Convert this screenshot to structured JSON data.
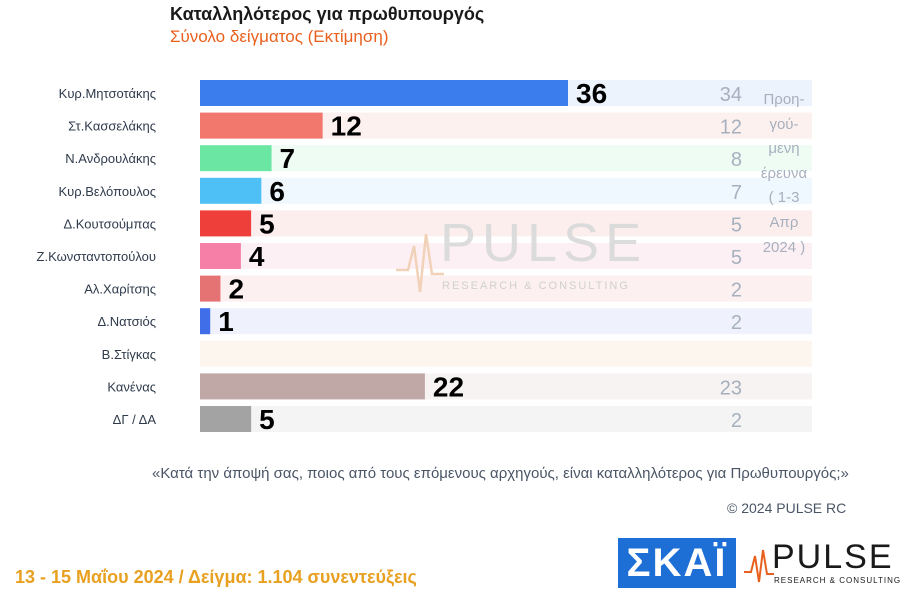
{
  "header": {
    "title": "Καταλληλότερος για πρωθυπουργός",
    "subtitle": "Σύνολο δείγματος   (Εκτίμηση)"
  },
  "chart_data": {
    "type": "bar",
    "orientation": "horizontal",
    "title": "Καταλληλότερος για πρωθυπουργός",
    "subtitle": "Σύνολο δείγματος   (Εκτίμηση)",
    "categories": [
      "Κυρ.Μητσοτάκης",
      "Στ.Κασσελάκης",
      "Ν.Ανδρουλάκης",
      "Κυρ.Βελόπουλος",
      "Δ.Κουτσούμπας",
      "Ζ.Κωνσταντοπούλου",
      "Αλ.Χαρίτσης",
      "Δ.Νατσιός",
      "Β.Στίγκας",
      "Κανένας",
      "ΔΓ / ΔΑ"
    ],
    "series": [
      {
        "values": [
          36,
          12,
          7,
          6,
          5,
          4,
          2,
          1,
          null,
          22,
          5
        ]
      },
      {
        "name": "Προηγούμενη έρευνα ( 1-3 Απρ 2024 )",
        "values": [
          34,
          12,
          8,
          7,
          5,
          5,
          2,
          2,
          null,
          23,
          2
        ]
      }
    ],
    "value_labels": [
      "36",
      "12",
      "7",
      "6",
      "5",
      "4",
      "2",
      "1",
      "",
      "22",
      "5"
    ],
    "previous_labels": [
      "34",
      "12",
      "8",
      "7",
      "5",
      "5",
      "2",
      "2",
      "",
      "23",
      "2"
    ],
    "bar_colors": [
      "#3b7ded",
      "#f2786e",
      "#6be6a3",
      "#4fc0f6",
      "#ef3f3a",
      "#f57fa6",
      "#e57373",
      "#3f6ee8",
      "#cccccc",
      "#bfa8a6",
      "#a3a3a3"
    ],
    "row_colors": [
      "#edf3fd",
      "#fdf1f0",
      "#effcf4",
      "#eef8fe",
      "#fdeeee",
      "#fdf0f4",
      "#fcf0f0",
      "#eff2fd",
      "#fdf6ee",
      "#f6f3f2",
      "#f4f4f4"
    ],
    "xlim": [
      0,
      60
    ]
  },
  "watermark": {
    "word": "PULSE",
    "sub": "RESEARCH & CONSULTING"
  },
  "previous_note": [
    "Προη-",
    "γού-",
    "μενη",
    "έρευνα",
    "( 1-3",
    "Απρ",
    "2024 )"
  ],
  "question": "«Κατά την άποψή σας, ποιος από τους επόμενους αρχηγούς, είναι καταλληλότερος για Πρωθυπουργός;»",
  "copyright": "© 2024 PULSE RC",
  "footer": "13 - 15  Μαΐου 2024  /  Δείγμα:  1.104 συνεντεύξεις",
  "logos": {
    "skai": "ΣΚΑΪ",
    "pulse_word": "PULSE",
    "pulse_sub": "RESEARCH & CONSULTING"
  },
  "colors": {
    "title": "#1a1a1a",
    "subtitle": "#e8601e",
    "footer": "#e8a020",
    "previous": "#a7b0be"
  }
}
